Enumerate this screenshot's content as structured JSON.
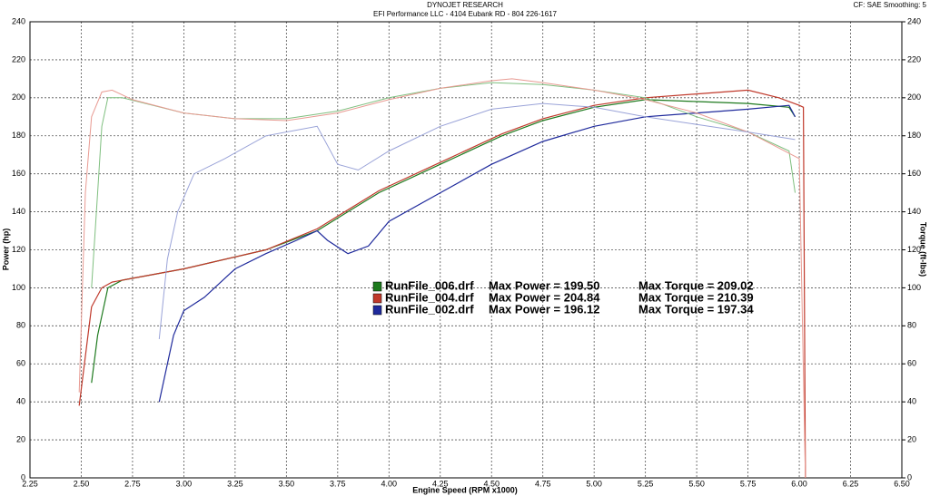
{
  "chart_data": {
    "type": "line",
    "title": "DYNOJET RESEARCH",
    "subtitle": "EFI Performance LLC - 4104 Eubank RD - 804 226-1617",
    "corner_note": "CF: SAE  Smoothing: 5",
    "x_label": "Engine Speed (RPM x1000)",
    "y_label": "Power (hp)",
    "y2_label": "Torque (ft-lbs)",
    "xlim": [
      2.25,
      6.5
    ],
    "xticks": [
      2.25,
      {
        "value": 2.5,
        "label": "2.50"
      },
      2.75,
      {
        "value": 3,
        "label": "3.00"
      },
      3.25,
      {
        "value": 3.5,
        "label": "3.50"
      },
      3.75,
      {
        "value": 4,
        "label": "4.00"
      },
      4.25,
      {
        "value": 4.5,
        "label": "4.50"
      },
      4.75,
      {
        "value": 5,
        "label": "5.00"
      },
      5.25,
      {
        "value": 5.5,
        "label": "5.50"
      },
      5.75,
      {
        "value": 6,
        "label": "6.00"
      },
      6.25,
      {
        "value": 6.5,
        "label": "6.50"
      }
    ],
    "ylim": [
      0,
      240
    ],
    "yticks": [
      0,
      20,
      40,
      60,
      80,
      100,
      120,
      140,
      160,
      180,
      200,
      220,
      240
    ],
    "y2lim": [
      0,
      240
    ],
    "y2ticks": [
      0,
      20,
      40,
      60,
      80,
      100,
      120,
      140,
      160,
      180,
      200,
      220,
      240
    ],
    "grid": true,
    "series": [
      {
        "name": "RunFile_006.drf",
        "legend_power": "Max Power = 199.50",
        "legend_torque": "Max Torque = 209.02",
        "color": "#1e7a1e",
        "x": [
          2.55,
          2.58,
          2.63,
          2.7,
          3.0,
          3.4,
          3.65,
          3.95,
          4.25,
          4.55,
          4.75,
          5.0,
          5.25,
          5.5,
          5.75,
          5.95,
          5.98
        ],
        "values": [
          50,
          75,
          100,
          104,
          110,
          120,
          130,
          150,
          165,
          180,
          188,
          195,
          199,
          198,
          197,
          195,
          190
        ]
      },
      {
        "name": "RunFile_004.drf",
        "legend_power": "Max Power = 204.84",
        "legend_torque": "Max Torque = 210.39",
        "color": "#c0392b",
        "x": [
          2.49,
          2.55,
          2.6,
          2.65,
          2.75,
          3.0,
          3.4,
          3.65,
          3.95,
          4.25,
          4.55,
          4.75,
          5.0,
          5.25,
          5.5,
          5.75,
          5.9,
          6.0,
          6.02,
          6.03
        ],
        "values": [
          38,
          90,
          100,
          103,
          105,
          110,
          120,
          131,
          151,
          166,
          181,
          189,
          196,
          200,
          202,
          204,
          200,
          196,
          195,
          0
        ]
      },
      {
        "name": "RunFile_002.drf",
        "legend_power": "Max Power = 196.12",
        "legend_torque": "Max Torque = 197.34",
        "color": "#1f2a9c",
        "x": [
          2.88,
          2.95,
          3.0,
          3.1,
          3.25,
          3.4,
          3.55,
          3.65,
          3.7,
          3.8,
          3.9,
          4.0,
          4.25,
          4.5,
          4.75,
          5.0,
          5.25,
          5.5,
          5.75,
          5.95,
          5.98
        ],
        "values": [
          40,
          75,
          88,
          95,
          110,
          118,
          125,
          130,
          125,
          118,
          122,
          135,
          150,
          165,
          177,
          185,
          190,
          192,
          194,
          196,
          190
        ]
      },
      {
        "axis": "y2",
        "color": "#7fbf7f",
        "x": [
          2.55,
          2.58,
          2.6,
          2.63,
          2.7,
          3.0,
          3.25,
          3.5,
          3.75,
          4.0,
          4.25,
          4.5,
          4.75,
          5.0,
          5.25,
          5.5,
          5.75,
          5.95,
          5.98
        ],
        "values": [
          100,
          150,
          185,
          200,
          200,
          192,
          189,
          189,
          193,
          200,
          205,
          208,
          207,
          204,
          200,
          190,
          182,
          172,
          150
        ]
      },
      {
        "axis": "y2",
        "color": "#e89a92",
        "x": [
          2.49,
          2.52,
          2.55,
          2.6,
          2.65,
          2.75,
          3.0,
          3.25,
          3.5,
          3.75,
          4.0,
          4.25,
          4.5,
          4.6,
          4.75,
          5.0,
          5.25,
          5.5,
          5.75,
          6.0,
          6.03
        ],
        "values": [
          45,
          150,
          190,
          203,
          204,
          199,
          192,
          189,
          188,
          192,
          199,
          205,
          209,
          210,
          208,
          204,
          199,
          192,
          182,
          168,
          0
        ]
      },
      {
        "axis": "y2",
        "color": "#9aa3d8",
        "x": [
          2.88,
          2.92,
          2.97,
          3.05,
          3.2,
          3.4,
          3.55,
          3.65,
          3.75,
          3.85,
          4.0,
          4.25,
          4.5,
          4.75,
          5.0,
          5.25,
          5.5,
          5.75,
          5.98
        ],
        "values": [
          73,
          115,
          140,
          160,
          168,
          180,
          183,
          185,
          165,
          162,
          172,
          185,
          194,
          197,
          195,
          190,
          186,
          182,
          178
        ]
      }
    ]
  }
}
